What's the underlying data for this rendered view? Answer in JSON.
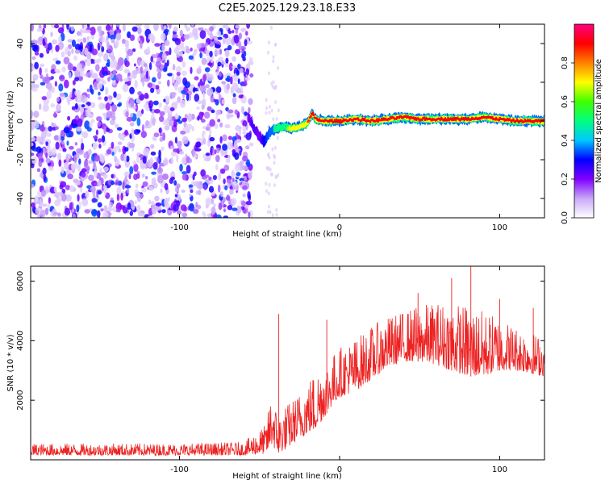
{
  "title": "C2E5.2025.129.23.18.E33",
  "chart_data": [
    {
      "type": "heatmap",
      "xlabel": "Height of straight line (km)",
      "ylabel": "Frequency (Hz)",
      "xlim": [
        -193,
        128
      ],
      "ylim": [
        -50,
        50
      ],
      "xticks": [
        -100,
        0,
        100
      ],
      "yticks": [
        -40,
        -20,
        0,
        20,
        40
      ],
      "colorbar": {
        "label": "Normalized spectral amplitude",
        "range": [
          0,
          1
        ],
        "ticks": [
          "0.0",
          "0.2",
          "0.4",
          "0.6",
          "0.8"
        ],
        "colormap": [
          "#ffffff",
          "#c8a8f8",
          "#8000ff",
          "#0000ff",
          "#00c8ff",
          "#00ff80",
          "#40ff00",
          "#ffff00",
          "#ff8000",
          "#ff0000",
          "#ff0080"
        ]
      },
      "noise_region": {
        "x": [
          -193,
          -55
        ],
        "y": [
          -50,
          50
        ],
        "amplitude": [
          0.05,
          0.35
        ]
      },
      "sparse_noise_region": {
        "x": [
          -46,
          -38
        ],
        "y": [
          -50,
          50
        ],
        "amplitude": [
          0.02,
          0.08
        ]
      },
      "signal_track": {
        "x": [
          -57,
          -54,
          -50,
          -47,
          -44,
          -40,
          -35,
          -30,
          -25,
          -20,
          -17,
          -15,
          -10,
          -5,
          0,
          10,
          20,
          30,
          40,
          50,
          60,
          70,
          80,
          90,
          100,
          110,
          120,
          128
        ],
        "y": [
          2,
          -3,
          -8,
          -11,
          -6,
          -4,
          -3,
          -4,
          -3,
          -1,
          4,
          1,
          0,
          0,
          0,
          1,
          0,
          1,
          2,
          1,
          1,
          1,
          1,
          2,
          1,
          0,
          0,
          0
        ],
        "amplitude": [
          0.2,
          0.25,
          0.2,
          0.3,
          0.35,
          0.5,
          0.6,
          0.7,
          0.8,
          0.85,
          0.9,
          0.95,
          0.95,
          0.95,
          0.95,
          0.95,
          0.95,
          0.95,
          0.95,
          0.95,
          0.95,
          0.95,
          0.95,
          0.95,
          0.95,
          0.95,
          0.95,
          0.95
        ]
      }
    },
    {
      "type": "line",
      "xlabel": "Height of straight line (km)",
      "ylabel": "SNR (10 * v/v)",
      "xlim": [
        -193,
        128
      ],
      "ylim": [
        0,
        6500
      ],
      "xticks": [
        -100,
        0,
        100
      ],
      "yticks": [
        2000,
        4000,
        6000
      ],
      "series": [
        {
          "color": "#ee2222",
          "envelope_x": [
            -193,
            -150,
            -100,
            -60,
            -46,
            -42,
            -40,
            -38,
            -35,
            -30,
            -25,
            -20,
            -15,
            -10,
            -5,
            0,
            10,
            20,
            30,
            40,
            50,
            60,
            70,
            80,
            90,
            100,
            110,
            120,
            128
          ],
          "envelope_low": [
            150,
            150,
            150,
            150,
            200,
            500,
            300,
            250,
            300,
            500,
            700,
            900,
            1000,
            1400,
            1800,
            2100,
            2300,
            2700,
            3100,
            3300,
            3300,
            3200,
            3000,
            2800,
            2800,
            3000,
            3000,
            2900,
            2800
          ],
          "envelope_high": [
            550,
            550,
            550,
            600,
            1200,
            2500,
            1800,
            1500,
            1800,
            2000,
            2300,
            2700,
            3000,
            3300,
            3500,
            3800,
            4100,
            4500,
            4800,
            5000,
            5200,
            5300,
            5300,
            5200,
            5000,
            4800,
            4500,
            4300,
            4100
          ],
          "peaks": [
            {
              "x": -38,
              "y": 4900
            },
            {
              "x": -8,
              "y": 4700
            },
            {
              "x": 49,
              "y": 5600
            },
            {
              "x": 70,
              "y": 6100
            },
            {
              "x": 82,
              "y": 6500
            },
            {
              "x": 100,
              "y": 5400
            },
            {
              "x": 121,
              "y": 5100
            }
          ]
        }
      ]
    }
  ]
}
